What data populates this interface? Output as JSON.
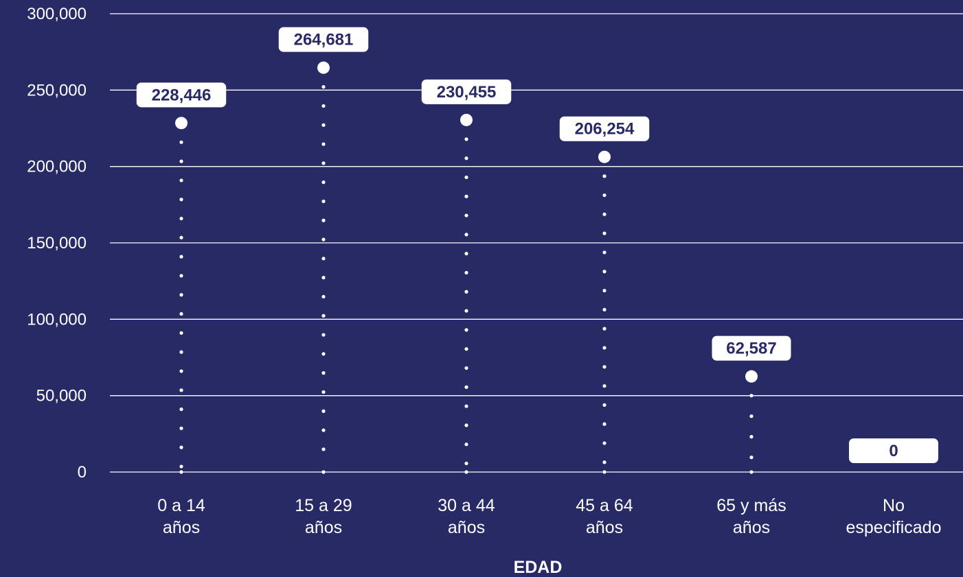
{
  "colors": {
    "background": "#282a65",
    "foreground": "#ffffff",
    "label_text": "#282a65"
  },
  "chart_data": {
    "type": "scatter",
    "style": "lollipop with dotted stems",
    "xlabel": "EDAD",
    "ylabel": "",
    "ylim": [
      0,
      300000
    ],
    "yticks": [
      0,
      50000,
      100000,
      150000,
      200000,
      250000,
      300000
    ],
    "ytick_labels": [
      "0",
      "50,000",
      "100,000",
      "150,000",
      "200,000",
      "250,000",
      "300,000"
    ],
    "grid": true,
    "legend": "none",
    "categories": [
      [
        "0 a 14",
        "años"
      ],
      [
        "15 a 29",
        "años"
      ],
      [
        "30 a 44",
        "años"
      ],
      [
        "45 a 64",
        "años"
      ],
      [
        "65 y más",
        "años"
      ],
      [
        "No",
        "especificado"
      ]
    ],
    "values": [
      228446,
      264681,
      230455,
      206254,
      62587,
      0
    ],
    "data_labels": [
      "228,446",
      "264,681",
      "230,455",
      "206,254",
      "62,587",
      "0"
    ]
  }
}
